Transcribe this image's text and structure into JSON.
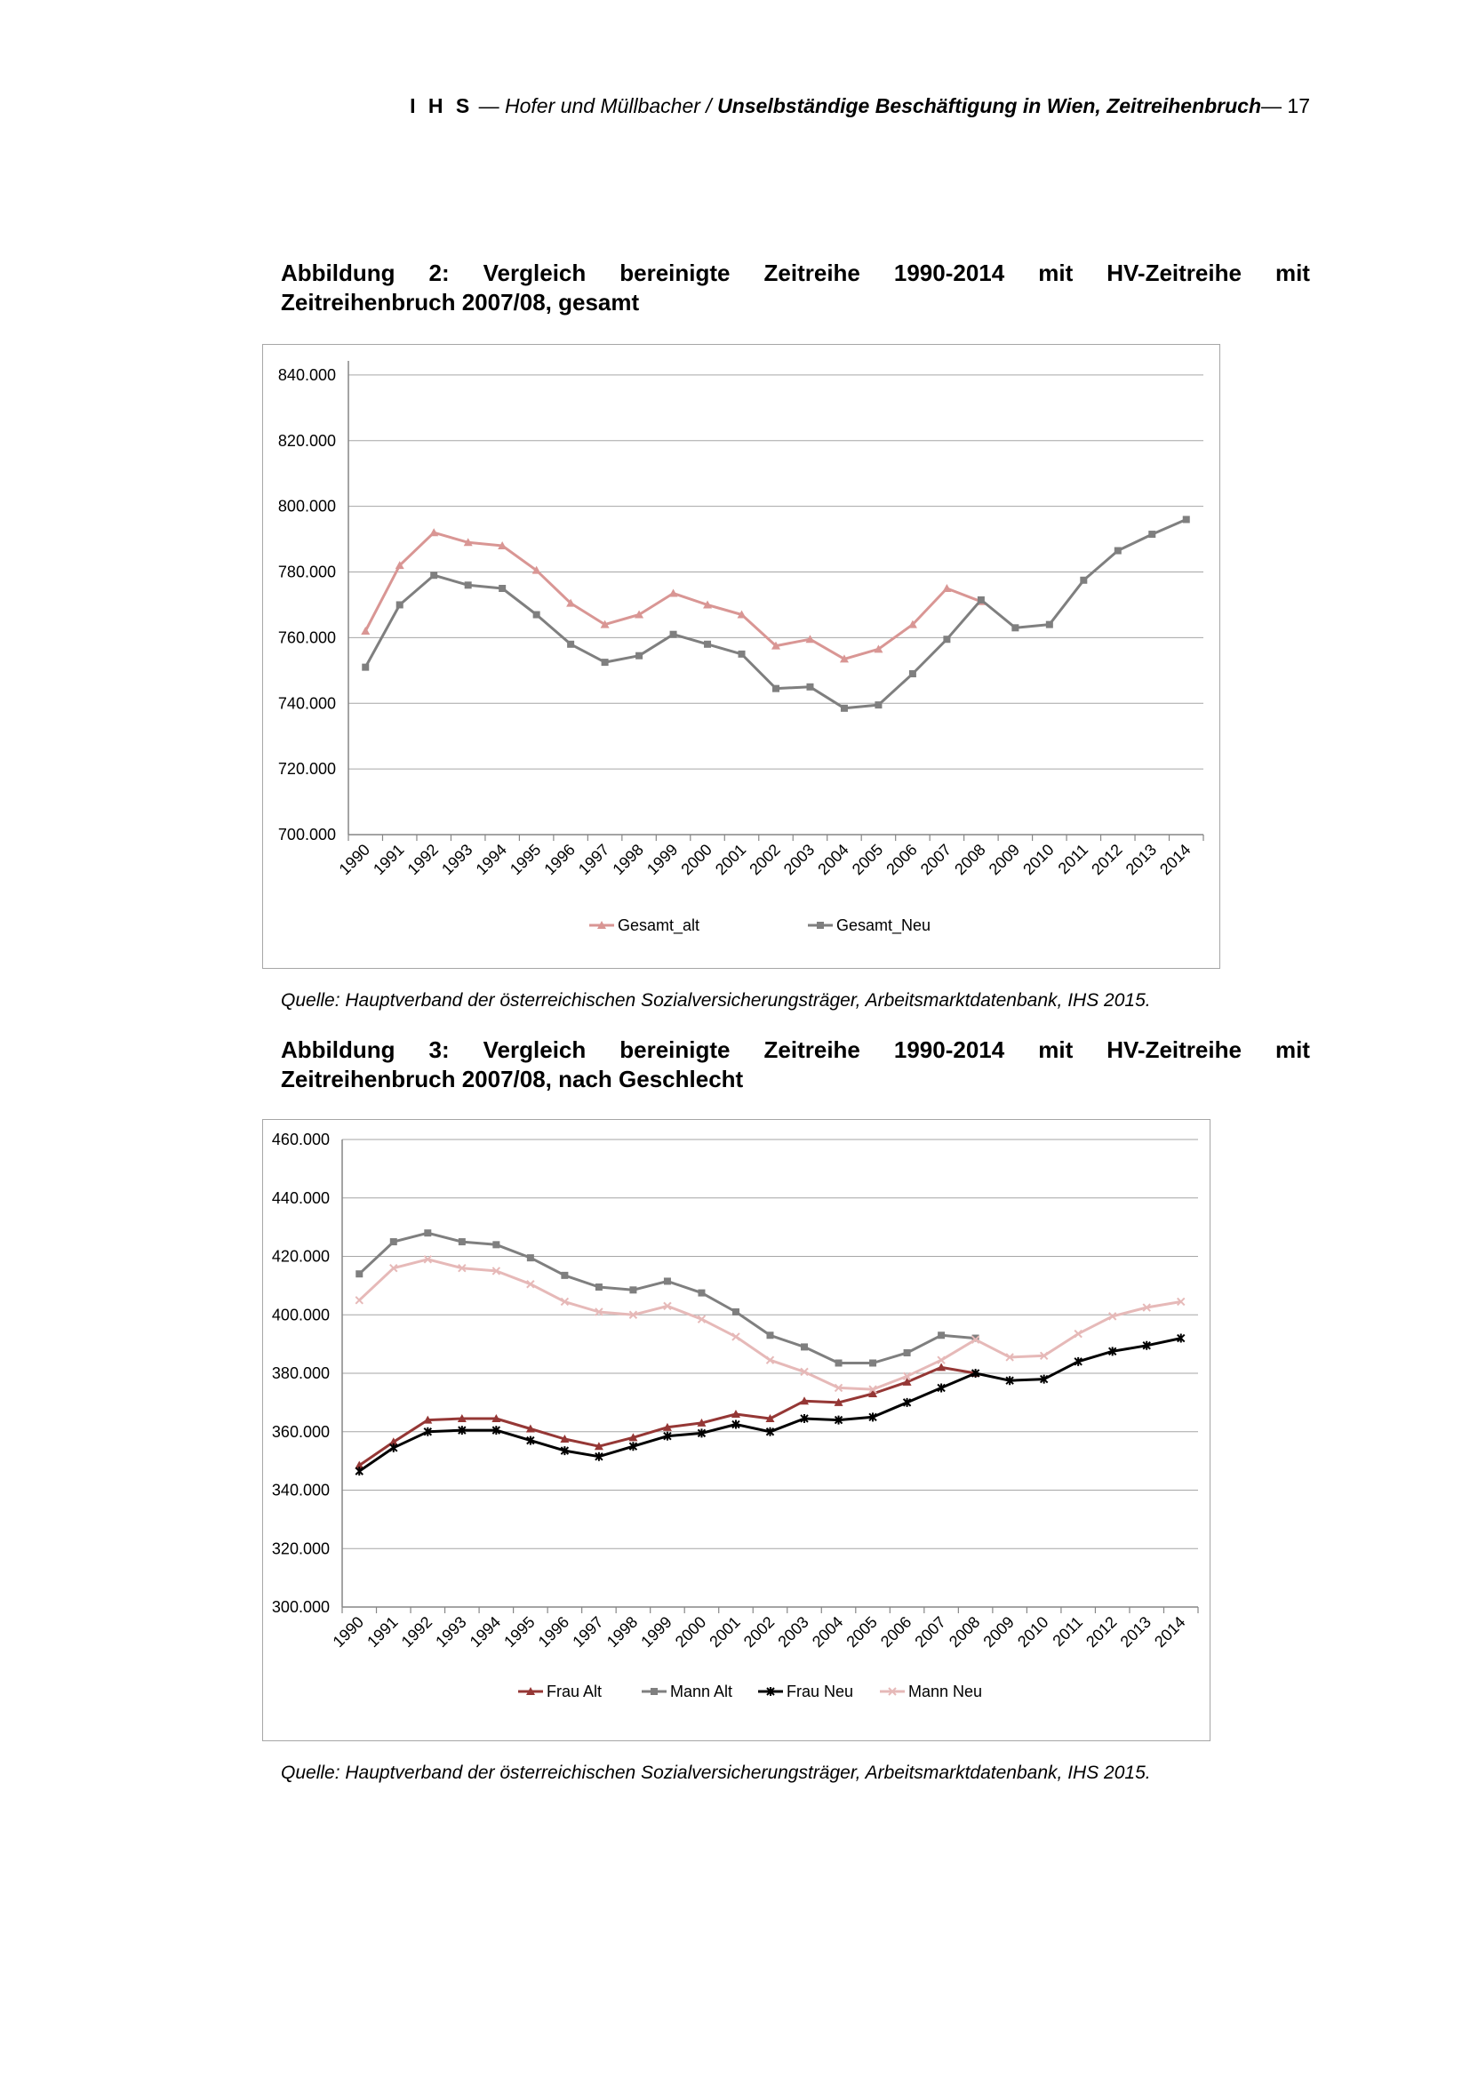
{
  "header": {
    "org": "I H S",
    "dash": " — ",
    "authors": "Hofer und Müllbacher / ",
    "title": "Unselbständige Beschäftigung in Wien, Zeitreihenbruch",
    "page": "— 17"
  },
  "figure2": {
    "title_words": [
      "Abbildung",
      "2:",
      "Vergleich",
      "bereinigte",
      "Zeitreihe",
      "1990-2014",
      "mit",
      "HV-Zeitreihe",
      "mit"
    ],
    "title_line2": "Zeitreihenbruch 2007/08, gesamt",
    "source": "Quelle: Hauptverband der österreichischen Sozialversicherungsträger, Arbeitsmarktdatenbank, IHS 2015."
  },
  "figure3": {
    "title_words": [
      "Abbildung",
      "3:",
      "Vergleich",
      "bereinigte",
      "Zeitreihe",
      "1990-2014",
      "mit",
      "HV-Zeitreihe",
      "mit"
    ],
    "title_line2": "Zeitreihenbruch 2007/08, nach Geschlecht",
    "source": "Quelle: Hauptverband der österreichischen Sozialversicherungsträger, Arbeitsmarktdatenbank, IHS 2015."
  },
  "chart_data": [
    {
      "type": "line",
      "title": "",
      "xlabel": "",
      "ylabel": "",
      "x": [
        "1990",
        "1991",
        "1992",
        "1993",
        "1994",
        "1995",
        "1996",
        "1997",
        "1998",
        "1999",
        "2000",
        "2001",
        "2002",
        "2003",
        "2004",
        "2005",
        "2006",
        "2007",
        "2008",
        "2009",
        "2010",
        "2011",
        "2012",
        "2013",
        "2014"
      ],
      "ylim": [
        700000,
        850000
      ],
      "yticks": [
        700000,
        720000,
        740000,
        760000,
        780000,
        800000,
        820000,
        840000
      ],
      "ytick_labels": [
        "700.000",
        "720.000",
        "740.000",
        "760.000",
        "780.000",
        "800.000",
        "820.000",
        "840.000"
      ],
      "grid": true,
      "legend": "bottom",
      "series": [
        {
          "name": "Gesamt_alt",
          "color": "#d99694",
          "marker": "triangle",
          "values": [
            762000,
            782000,
            792000,
            789000,
            788000,
            780500,
            770500,
            764000,
            767000,
            773500,
            770000,
            767000,
            757500,
            759500,
            753500,
            756500,
            764000,
            775000,
            771000,
            null,
            null,
            null,
            null,
            null,
            null
          ]
        },
        {
          "name": "Gesamt_Neu",
          "color": "#7f7f7f",
          "marker": "square",
          "values": [
            751000,
            770000,
            779000,
            776000,
            775000,
            767000,
            758000,
            752500,
            754500,
            761000,
            758000,
            755000,
            744500,
            745000,
            738500,
            739500,
            749000,
            759500,
            771500,
            763000,
            764000,
            777500,
            786500,
            791500,
            796000
          ]
        }
      ]
    },
    {
      "type": "line",
      "title": "",
      "xlabel": "",
      "ylabel": "",
      "x": [
        "1990",
        "1991",
        "1992",
        "1993",
        "1994",
        "1995",
        "1996",
        "1997",
        "1998",
        "1999",
        "2000",
        "2001",
        "2002",
        "2003",
        "2004",
        "2005",
        "2006",
        "2007",
        "2008",
        "2009",
        "2010",
        "2011",
        "2012",
        "2013",
        "2014"
      ],
      "ylim": [
        300000,
        460000
      ],
      "yticks": [
        300000,
        320000,
        340000,
        360000,
        380000,
        400000,
        420000,
        440000,
        460000
      ],
      "ytick_labels": [
        "300.000",
        "320.000",
        "340.000",
        "360.000",
        "380.000",
        "400.000",
        "420.000",
        "440.000",
        "460.000"
      ],
      "grid": true,
      "legend": "bottom",
      "series": [
        {
          "name": "Frau Alt",
          "color": "#953735",
          "marker": "triangle",
          "values": [
            348500,
            356500,
            364000,
            364500,
            364500,
            361000,
            357500,
            355000,
            358000,
            361500,
            363000,
            366000,
            364500,
            370500,
            370000,
            373000,
            377000,
            382000,
            380000,
            null,
            null,
            null,
            null,
            null,
            null
          ]
        },
        {
          "name": "Mann Alt",
          "color": "#7f7f7f",
          "marker": "square",
          "values": [
            414000,
            425000,
            428000,
            425000,
            424000,
            419500,
            413500,
            409500,
            408500,
            411500,
            407500,
            401000,
            393000,
            389000,
            383500,
            383500,
            387000,
            393000,
            392000,
            null,
            null,
            null,
            null,
            null,
            null
          ]
        },
        {
          "name": "Frau Neu",
          "color": "#000000",
          "marker": "star",
          "values": [
            346500,
            354500,
            360000,
            360500,
            360500,
            357000,
            353500,
            351500,
            355000,
            358500,
            359500,
            362500,
            360000,
            364500,
            364000,
            365000,
            370000,
            375000,
            380000,
            377500,
            378000,
            384000,
            387500,
            389500,
            392000
          ]
        },
        {
          "name": "Mann Neu",
          "color": "#e6b9b8",
          "marker": "x",
          "values": [
            405000,
            416000,
            419000,
            416000,
            415000,
            410500,
            404500,
            401000,
            400000,
            403000,
            398500,
            392500,
            384500,
            380500,
            375000,
            374500,
            379000,
            384500,
            391500,
            385500,
            386000,
            393500,
            399500,
            402500,
            404500
          ]
        }
      ]
    }
  ]
}
